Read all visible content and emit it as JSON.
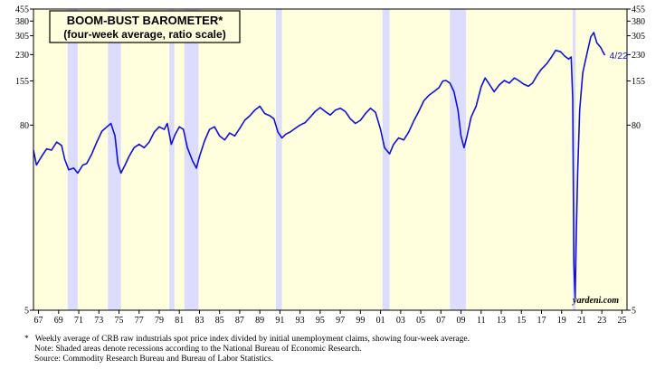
{
  "chart_data": {
    "type": "line",
    "title": "BOOM-BUST BAROMETER*",
    "subtitle": "(four-week average, ratio scale)",
    "yscale": "log",
    "ylim": [
      5,
      455
    ],
    "xlim": [
      1966.5,
      2025.5
    ],
    "y_ticks": [
      5,
      80,
      155,
      230,
      305,
      380,
      455
    ],
    "x_ticks": [
      {
        "year": 1967,
        "label": "67"
      },
      {
        "year": 1969,
        "label": "69"
      },
      {
        "year": 1971,
        "label": "71"
      },
      {
        "year": 1973,
        "label": "73"
      },
      {
        "year": 1975,
        "label": "75"
      },
      {
        "year": 1977,
        "label": "77"
      },
      {
        "year": 1979,
        "label": "79"
      },
      {
        "year": 1981,
        "label": "81"
      },
      {
        "year": 1983,
        "label": "83"
      },
      {
        "year": 1985,
        "label": "85"
      },
      {
        "year": 1987,
        "label": "87"
      },
      {
        "year": 1989,
        "label": "89"
      },
      {
        "year": 1991,
        "label": "91"
      },
      {
        "year": 1993,
        "label": "93"
      },
      {
        "year": 1995,
        "label": "95"
      },
      {
        "year": 1997,
        "label": "97"
      },
      {
        "year": 1999,
        "label": "99"
      },
      {
        "year": 2001,
        "label": "01"
      },
      {
        "year": 2003,
        "label": "03"
      },
      {
        "year": 2005,
        "label": "05"
      },
      {
        "year": 2007,
        "label": "07"
      },
      {
        "year": 2009,
        "label": "09"
      },
      {
        "year": 2011,
        "label": "11"
      },
      {
        "year": 2013,
        "label": "13"
      },
      {
        "year": 2015,
        "label": "15"
      },
      {
        "year": 2017,
        "label": "17"
      },
      {
        "year": 2019,
        "label": "19"
      },
      {
        "year": 2021,
        "label": "21"
      },
      {
        "year": 2023,
        "label": "23"
      },
      {
        "year": 2025,
        "label": "25"
      }
    ],
    "recessions": [
      [
        1969.9,
        1970.9
      ],
      [
        1973.9,
        1975.2
      ],
      [
        1980.0,
        1980.5
      ],
      [
        1981.5,
        1982.9
      ],
      [
        1990.6,
        1991.2
      ],
      [
        2001.2,
        2001.9
      ],
      [
        2007.9,
        2009.5
      ],
      [
        2020.1,
        2020.4
      ]
    ],
    "series": [
      {
        "name": "Boom-Bust Barometer",
        "color": "#1010dd",
        "points": [
          [
            1966.5,
            55
          ],
          [
            1966.8,
            44
          ],
          [
            1967.3,
            50
          ],
          [
            1967.8,
            56
          ],
          [
            1968.3,
            55
          ],
          [
            1968.8,
            62
          ],
          [
            1969.3,
            59
          ],
          [
            1969.6,
            48
          ],
          [
            1970.0,
            41
          ],
          [
            1970.5,
            42
          ],
          [
            1970.9,
            39
          ],
          [
            1971.4,
            44
          ],
          [
            1971.8,
            45
          ],
          [
            1972.3,
            52
          ],
          [
            1972.8,
            62
          ],
          [
            1973.3,
            73
          ],
          [
            1973.8,
            78
          ],
          [
            1974.2,
            82
          ],
          [
            1974.6,
            68
          ],
          [
            1974.9,
            45
          ],
          [
            1975.2,
            39
          ],
          [
            1975.6,
            44
          ],
          [
            1976.0,
            50
          ],
          [
            1976.5,
            57
          ],
          [
            1977.0,
            60
          ],
          [
            1977.5,
            57
          ],
          [
            1978.0,
            62
          ],
          [
            1978.5,
            72
          ],
          [
            1979.0,
            78
          ],
          [
            1979.5,
            75
          ],
          [
            1979.8,
            82
          ],
          [
            1980.2,
            60
          ],
          [
            1980.6,
            70
          ],
          [
            1981.0,
            78
          ],
          [
            1981.4,
            75
          ],
          [
            1981.8,
            57
          ],
          [
            1982.3,
            47
          ],
          [
            1982.7,
            42
          ],
          [
            1983.0,
            50
          ],
          [
            1983.5,
            63
          ],
          [
            1984.0,
            75
          ],
          [
            1984.5,
            78
          ],
          [
            1985.0,
            68
          ],
          [
            1985.5,
            64
          ],
          [
            1986.0,
            71
          ],
          [
            1986.5,
            68
          ],
          [
            1987.0,
            76
          ],
          [
            1987.5,
            86
          ],
          [
            1988.0,
            92
          ],
          [
            1988.5,
            100
          ],
          [
            1989.0,
            106
          ],
          [
            1989.5,
            95
          ],
          [
            1990.0,
            92
          ],
          [
            1990.4,
            88
          ],
          [
            1990.8,
            72
          ],
          [
            1991.2,
            66
          ],
          [
            1991.6,
            70
          ],
          [
            1992.0,
            72
          ],
          [
            1992.5,
            76
          ],
          [
            1993.0,
            80
          ],
          [
            1993.5,
            83
          ],
          [
            1994.0,
            90
          ],
          [
            1994.5,
            98
          ],
          [
            1995.0,
            104
          ],
          [
            1995.5,
            98
          ],
          [
            1996.0,
            93
          ],
          [
            1996.5,
            100
          ],
          [
            1997.0,
            103
          ],
          [
            1997.5,
            98
          ],
          [
            1998.0,
            88
          ],
          [
            1998.5,
            82
          ],
          [
            1999.0,
            86
          ],
          [
            1999.5,
            95
          ],
          [
            2000.0,
            103
          ],
          [
            2000.5,
            97
          ],
          [
            2001.0,
            75
          ],
          [
            2001.4,
            57
          ],
          [
            2001.9,
            52
          ],
          [
            2002.3,
            60
          ],
          [
            2002.8,
            66
          ],
          [
            2003.3,
            64
          ],
          [
            2003.8,
            72
          ],
          [
            2004.3,
            85
          ],
          [
            2004.8,
            98
          ],
          [
            2005.3,
            115
          ],
          [
            2005.8,
            125
          ],
          [
            2006.3,
            132
          ],
          [
            2006.8,
            140
          ],
          [
            2007.2,
            155
          ],
          [
            2007.5,
            156
          ],
          [
            2007.9,
            150
          ],
          [
            2008.3,
            132
          ],
          [
            2008.7,
            100
          ],
          [
            2009.0,
            68
          ],
          [
            2009.3,
            57
          ],
          [
            2009.6,
            68
          ],
          [
            2010.0,
            90
          ],
          [
            2010.5,
            106
          ],
          [
            2011.0,
            142
          ],
          [
            2011.4,
            162
          ],
          [
            2011.8,
            148
          ],
          [
            2012.3,
            132
          ],
          [
            2012.8,
            146
          ],
          [
            2013.3,
            156
          ],
          [
            2013.8,
            150
          ],
          [
            2014.3,
            162
          ],
          [
            2014.8,
            155
          ],
          [
            2015.2,
            148
          ],
          [
            2015.7,
            143
          ],
          [
            2016.1,
            150
          ],
          [
            2016.6,
            170
          ],
          [
            2017.0,
            185
          ],
          [
            2017.5,
            200
          ],
          [
            2018.0,
            222
          ],
          [
            2018.4,
            245
          ],
          [
            2018.9,
            240
          ],
          [
            2019.3,
            225
          ],
          [
            2019.7,
            215
          ],
          [
            2019.95,
            222
          ],
          [
            2020.1,
            120
          ],
          [
            2020.22,
            10
          ],
          [
            2020.3,
            7
          ],
          [
            2020.35,
            6
          ],
          [
            2020.45,
            15
          ],
          [
            2020.6,
            40
          ],
          [
            2020.8,
            100
          ],
          [
            2021.1,
            175
          ],
          [
            2021.5,
            230
          ],
          [
            2021.9,
            300
          ],
          [
            2022.2,
            320
          ],
          [
            2022.5,
            275
          ],
          [
            2022.9,
            255
          ],
          [
            2023.1,
            240
          ],
          [
            2023.3,
            228
          ]
        ],
        "end_label": "4/22"
      }
    ],
    "watermark": "yardeni.com"
  },
  "footnotes": {
    "line1_marker": "*",
    "line1": "Weekly average of CRB raw industrials spot price index divided by initial unemployment claims, showing four-week average.",
    "line2": "Note: Shaded areas denote recessions according to the National Bureau of Economic Research.",
    "line3": "Source: Commodity Research Bureau and Bureau of Labor Statistics."
  },
  "colors": {
    "plot_background": "#ffffdd",
    "recession_shade": "#dcdcff",
    "line": "#1010dd",
    "frame": "#000000"
  }
}
